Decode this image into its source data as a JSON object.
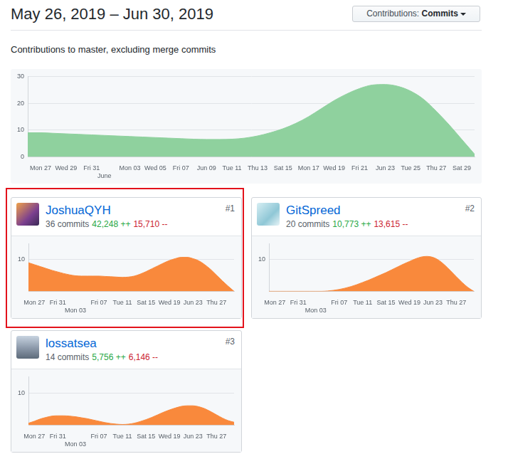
{
  "header": {
    "title": "May 26, 2019 – Jun 30, 2019",
    "button_label": "Contributions:",
    "button_value": "Commits",
    "subtitle": "Contributions to master, excluding merge commits"
  },
  "chart_data": [
    {
      "type": "area",
      "categories": [
        null,
        "Mon 27",
        null,
        "Wed 29",
        null,
        "Fri 31",
        "June",
        null,
        "Mon 03",
        null,
        "Wed 05",
        null,
        "Fri 07",
        null,
        "Jun 09",
        null,
        "Tue 11",
        null,
        "Thu 13",
        null,
        "Sat 15",
        null,
        "Mon 17",
        null,
        "Wed 19",
        null,
        "Fri 21",
        null,
        "Jun 23",
        null,
        "Tue 25",
        null,
        "Thu 27",
        null,
        "Sat 29",
        null
      ],
      "values": [
        9,
        9,
        8.8,
        8.6,
        8.4,
        8.2,
        8,
        7.8,
        7.6,
        7.4,
        7.2,
        7,
        6.8,
        6.6,
        6.5,
        6.5,
        6.6,
        7,
        7.8,
        9,
        10.5,
        12.5,
        15,
        18,
        21,
        23.5,
        25.5,
        26.8,
        27,
        26.3,
        24.5,
        21.5,
        17,
        12,
        6.5,
        1
      ],
      "color": "#8fd19e",
      "ylim": [
        0,
        30
      ],
      "yticks": [
        0,
        10,
        20,
        30
      ],
      "grid": true
    },
    {
      "type": "area",
      "title": "JoshuaQYH",
      "rank": "#1",
      "commits": "36 commits",
      "additions": "42,248 ++",
      "deletions": "15,710 --",
      "categories": [
        null,
        "Mon 27",
        null,
        null,
        null,
        "Fri 31",
        null,
        null,
        "Mon 03",
        null,
        null,
        null,
        "Fri 07",
        null,
        null,
        null,
        "Tue 11",
        null,
        null,
        null,
        "Sat 15",
        null,
        null,
        null,
        "Wed 19",
        null,
        null,
        null,
        "Jun 23",
        null,
        null,
        null,
        "Thu 27",
        null,
        null,
        null
      ],
      "values": [
        9,
        8.4,
        7.8,
        7.2,
        6.6,
        6.1,
        5.6,
        5.2,
        4.9,
        4.8,
        4.8,
        4.8,
        4.8,
        4.7,
        4.6,
        4.5,
        4.4,
        4.5,
        4.8,
        5.4,
        6.2,
        7.1,
        8,
        8.9,
        9.7,
        10.3,
        10.7,
        10.7,
        10.3,
        9.6,
        8.4,
        6.9,
        5.1,
        3.3,
        1.6,
        0
      ],
      "color": "#f9893c",
      "ylim": [
        0,
        15
      ],
      "yticks": [
        10
      ],
      "grid": true
    },
    {
      "type": "area",
      "title": "GitSpreed",
      "rank": "#2",
      "commits": "20 commits",
      "additions": "10,773 ++",
      "deletions": "13,615 --",
      "categories": [
        null,
        "Mon 27",
        null,
        null,
        null,
        "Fri 31",
        null,
        null,
        "Mon 03",
        null,
        null,
        null,
        "Fri 07",
        null,
        null,
        null,
        "Tue 11",
        null,
        null,
        null,
        "Sat 15",
        null,
        null,
        null,
        "Wed 19",
        null,
        null,
        null,
        "Jun 23",
        null,
        null,
        null,
        "Thu 27",
        null,
        null,
        null
      ],
      "values": [
        0,
        0,
        0,
        0,
        0,
        0,
        0,
        0,
        0,
        0,
        0.1,
        0.3,
        0.6,
        1,
        1.5,
        2.1,
        2.8,
        3.5,
        4.3,
        5.1,
        5.9,
        6.8,
        7.7,
        8.6,
        9.4,
        10.2,
        10.8,
        11,
        10.7,
        9.8,
        8.3,
        6.5,
        4.6,
        2.8,
        1.2,
        0
      ],
      "color": "#f9893c",
      "ylim": [
        0,
        15
      ],
      "yticks": [
        10
      ],
      "grid": true
    },
    {
      "type": "area",
      "title": "lossatsea",
      "rank": "#3",
      "commits": "14 commits",
      "additions": "5,756 ++",
      "deletions": "6,146 --",
      "categories": [
        null,
        "Mon 27",
        null,
        null,
        null,
        "Fri 31",
        null,
        null,
        "Mon 03",
        null,
        null,
        null,
        "Fri 07",
        null,
        null,
        null,
        "Tue 11",
        null,
        null,
        null,
        "Sat 15",
        null,
        null,
        null,
        "Wed 19",
        null,
        null,
        null,
        "Jun 23",
        null,
        null,
        null,
        "Thu 27",
        null,
        null,
        null
      ],
      "values": [
        0.6,
        1.2,
        1.9,
        2.4,
        2.8,
        2.9,
        2.9,
        2.8,
        2.6,
        2.3,
        2,
        1.6,
        1.2,
        0.8,
        0.5,
        0.3,
        0.2,
        0.3,
        0.6,
        1.1,
        1.7,
        2.4,
        3.2,
        4,
        4.7,
        5.3,
        5.8,
        6,
        6,
        5.7,
        5.1,
        4.2,
        3.2,
        2.2,
        1.4,
        0.9
      ],
      "color": "#f9893c",
      "ylim": [
        0,
        15
      ],
      "yticks": [
        10
      ],
      "grid": true
    }
  ]
}
